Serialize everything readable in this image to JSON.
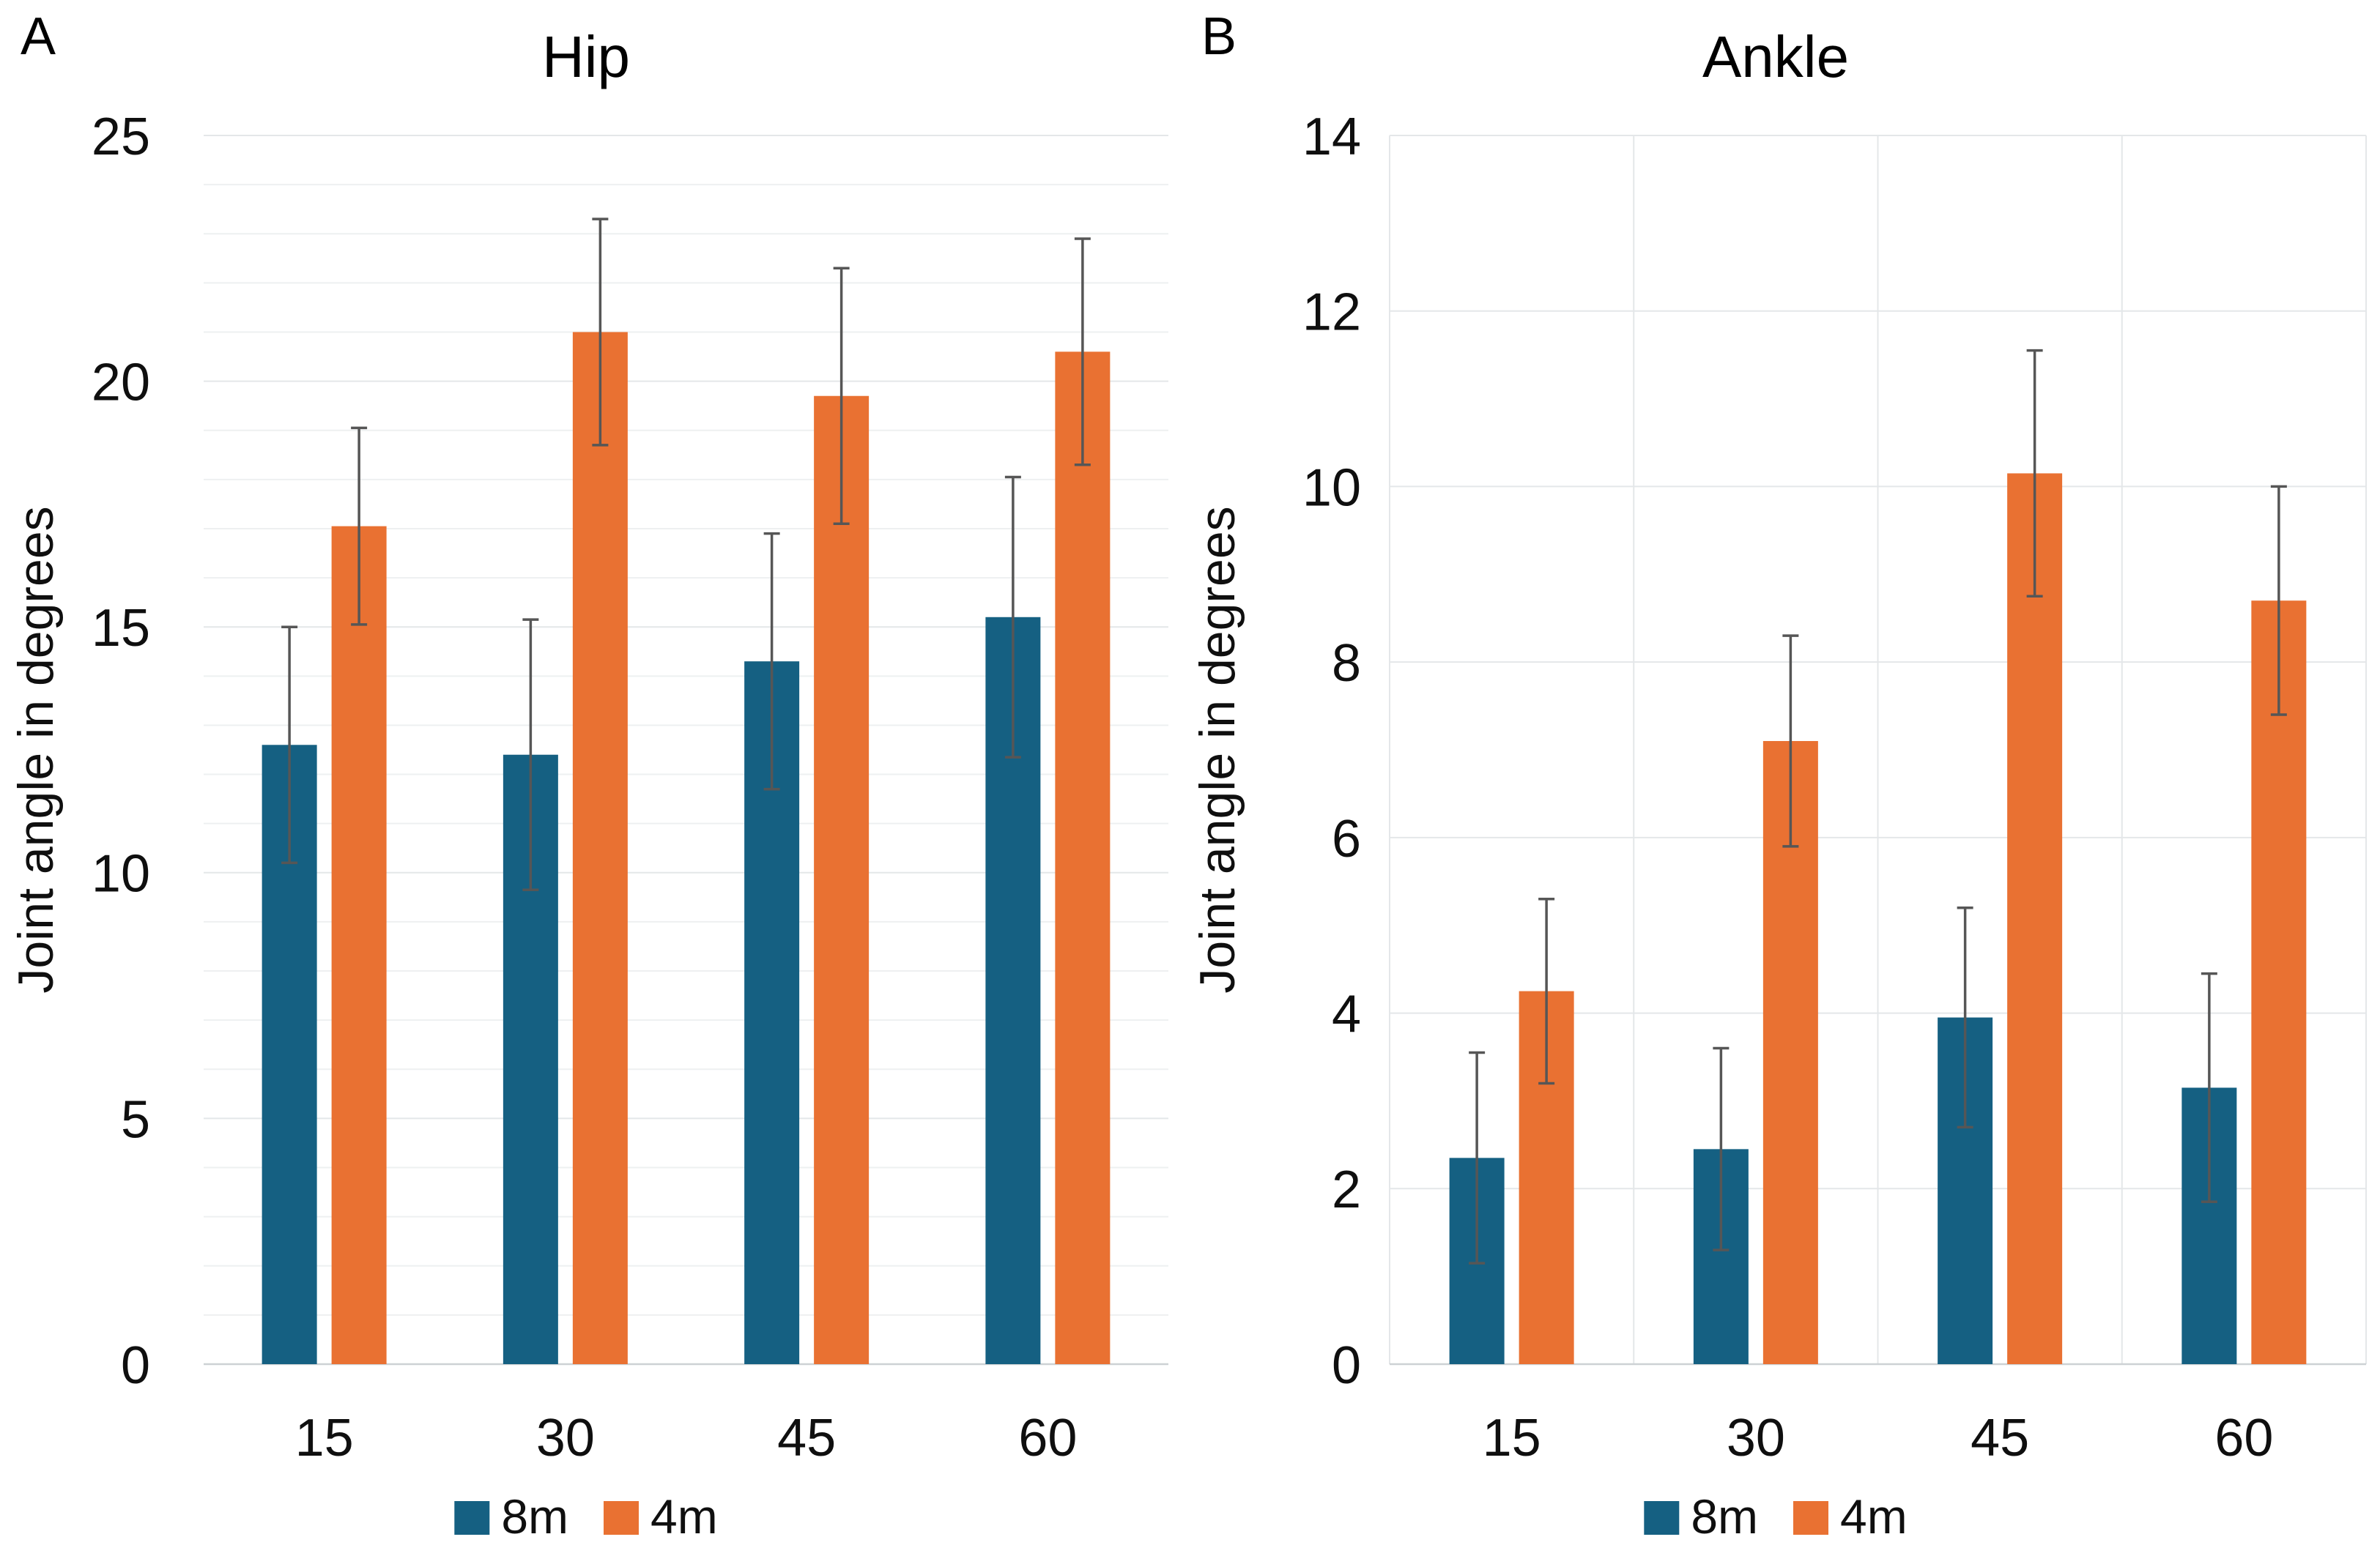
{
  "figure": {
    "background": "#FFFFFF"
  },
  "colors": {
    "series_8m": "#156082",
    "series_4m": "#E97132",
    "grid_minor": "#EEF0F1",
    "grid_major": "#E4E7E9",
    "axis_baseline": "#CDD1D4",
    "error_bar": "#565656",
    "text": "#0F0F0F"
  },
  "chart_data": [
    {
      "type": "bar",
      "panel_label": "A",
      "title": "Hip",
      "ylabel": "Joint angle in degrees",
      "categories": [
        "15",
        "30",
        "45",
        "60"
      ],
      "ylim": [
        0,
        25
      ],
      "ytick_step": 5,
      "yticks": [
        0,
        5,
        10,
        15,
        20,
        25
      ],
      "minor_grid_step": 1,
      "vertical_grid": false,
      "grid": "horizontal",
      "legend_position": "bottom-center",
      "series": [
        {
          "name": "8m",
          "color": "#156082",
          "values": [
            12.6,
            12.4,
            14.3,
            15.2
          ],
          "errors": [
            2.4,
            2.75,
            2.6,
            2.85
          ]
        },
        {
          "name": "4m",
          "color": "#E97132",
          "values": [
            17.05,
            21.0,
            19.7,
            20.6
          ],
          "errors": [
            2.0,
            2.3,
            2.6,
            2.3
          ]
        }
      ]
    },
    {
      "type": "bar",
      "panel_label": "B",
      "title": "Ankle",
      "ylabel": "Joint angle in degrees",
      "categories": [
        "15",
        "30",
        "45",
        "60"
      ],
      "ylim": [
        0,
        14
      ],
      "ytick_step": 2,
      "yticks": [
        0,
        2,
        4,
        6,
        8,
        10,
        12,
        14
      ],
      "minor_grid_step": null,
      "vertical_grid": true,
      "grid": "horizontal+vertical",
      "legend_position": "bottom-center",
      "series": [
        {
          "name": "8m",
          "color": "#156082",
          "values": [
            2.35,
            2.45,
            3.95,
            3.15
          ],
          "errors": [
            1.2,
            1.15,
            1.25,
            1.3
          ]
        },
        {
          "name": "4m",
          "color": "#E97132",
          "values": [
            4.25,
            7.1,
            10.15,
            8.7
          ],
          "errors": [
            1.05,
            1.2,
            1.4,
            1.3
          ]
        }
      ]
    }
  ]
}
